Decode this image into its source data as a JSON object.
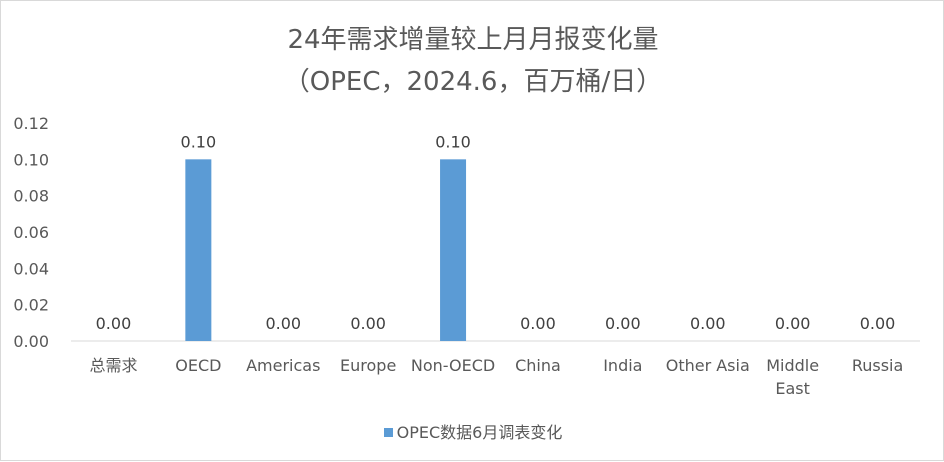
{
  "chart_data": {
    "type": "bar",
    "title": "24年需求增量较上月月报变化量",
    "subtitle": "（OPEC，2024.6，百万桶/日）",
    "categories": [
      [
        "总需求"
      ],
      [
        "OECD"
      ],
      [
        "Americas"
      ],
      [
        "Europe"
      ],
      [
        "Non-OECD"
      ],
      [
        "China"
      ],
      [
        "India"
      ],
      [
        "Other Asia"
      ],
      [
        "Middle",
        "East"
      ],
      [
        "Russia"
      ]
    ],
    "series": [
      {
        "name": "OPEC数据6月调表变化",
        "values": [
          0.0,
          0.1,
          0.0,
          0.0,
          0.1,
          0.0,
          0.0,
          0.0,
          0.0,
          0.0
        ],
        "labels": [
          "0.00",
          "0.10",
          "0.00",
          "0.00",
          "0.10",
          "0.00",
          "0.00",
          "0.00",
          "0.00",
          "0.00"
        ],
        "color": "#5b9bd5"
      }
    ],
    "ylim": [
      0,
      0.12
    ],
    "yticks": [
      "0.00",
      "0.02",
      "0.04",
      "0.06",
      "0.08",
      "0.10",
      "0.12"
    ],
    "xlabel": "",
    "ylabel": "",
    "grid": false,
    "legend": "bottom"
  }
}
